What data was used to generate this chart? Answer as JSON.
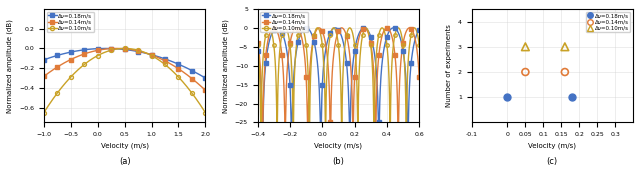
{
  "fig_width": 6.4,
  "fig_height": 1.8,
  "dpi": 100,
  "colors": {
    "blue": "#4472C4",
    "orange": "#E07B39",
    "yellow": "#C9A227"
  },
  "panel_a": {
    "xlabel": "Velocity (m/s)",
    "ylabel": "Normalized amplitude (dB)",
    "xlim": [
      -1.0,
      2.0
    ],
    "ylim": [
      -0.75,
      0.4
    ],
    "xticks": [
      -1.0,
      -0.5,
      0.0,
      0.5,
      1.0,
      1.5,
      2.0
    ],
    "yticks": [
      -0.6,
      -0.4,
      -0.2,
      0.0,
      0.2
    ],
    "label": "(a)"
  },
  "panel_b": {
    "xlabel": "Velocity (m/s)",
    "ylabel": "Normalized amplitude (dB)",
    "xlim": [
      -0.4,
      0.6
    ],
    "ylim": [
      -25,
      5
    ],
    "xticks": [
      -0.4,
      -0.2,
      0.0,
      0.2,
      0.4,
      0.6
    ],
    "yticks": [
      -25,
      -20,
      -15,
      -10,
      -5,
      0,
      5
    ],
    "label": "(b)"
  },
  "panel_c": {
    "xlabel": "Velocity (m/s)",
    "ylabel": "Number of experiments",
    "xlim": [
      -0.1,
      0.35
    ],
    "ylim": [
      0,
      4.5
    ],
    "xticks": [
      -0.1,
      0.0,
      0.05,
      0.1,
      0.15,
      0.2,
      0.25,
      0.3
    ],
    "yticks": [
      1,
      2,
      3,
      4
    ],
    "label": "(c)"
  },
  "legend_labels": [
    "Δν=0.18m/s",
    "Δν=0.14m/s",
    "Δν=0.10m/s"
  ]
}
